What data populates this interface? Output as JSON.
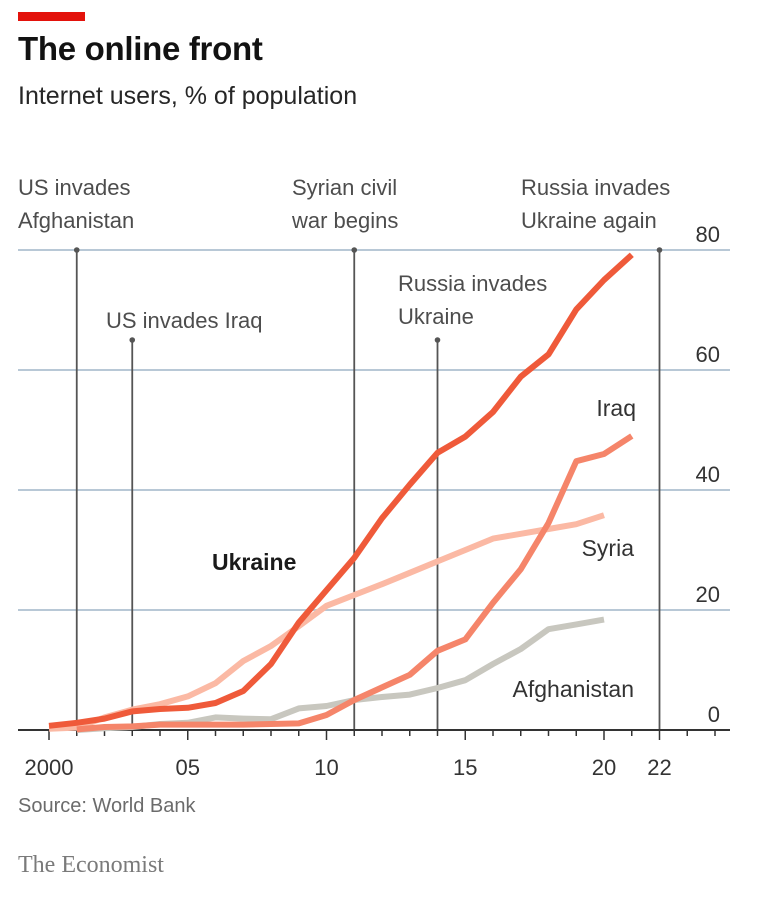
{
  "header": {
    "title": "The online front",
    "subtitle": "Internet users, % of population"
  },
  "footer": {
    "source": "Source: World Bank",
    "brand": "The Economist"
  },
  "colors": {
    "accent": "#e3120b",
    "ukraine": "#ef5a3a",
    "iraq": "#f5856a",
    "syria": "#fbb9a4",
    "afghanistan": "#c8c7bf",
    "grid": "#b8c8d6",
    "event_line": "#555555"
  },
  "chart_data": {
    "type": "line",
    "title": "The online front",
    "subtitle": "Internet users, % of population",
    "xlabel": "",
    "ylabel": "",
    "xlim": [
      2000,
      2024.5
    ],
    "ylim": [
      0,
      80
    ],
    "y_axis_position": "right",
    "grid": true,
    "x_ticks": [
      {
        "value": 2000,
        "label": "2000"
      },
      {
        "value": 2005,
        "label": "05"
      },
      {
        "value": 2010,
        "label": "10"
      },
      {
        "value": 2015,
        "label": "15"
      },
      {
        "value": 2020,
        "label": "20"
      },
      {
        "value": 2022,
        "label": "22"
      }
    ],
    "y_ticks": [
      {
        "value": 0,
        "label": "0"
      },
      {
        "value": 20,
        "label": "20"
      },
      {
        "value": 40,
        "label": "40"
      },
      {
        "value": 60,
        "label": "60"
      },
      {
        "value": 80,
        "label": "80"
      }
    ],
    "series": [
      {
        "name": "Syria",
        "key": "syria",
        "label_bold": false,
        "x": [
          2000,
          2001,
          2002,
          2003,
          2004,
          2005,
          2006,
          2007,
          2008,
          2009,
          2010,
          2011,
          2012,
          2013,
          2014,
          2015,
          2016,
          2017,
          2018,
          2019,
          2020
        ],
        "values": [
          0.2,
          0.4,
          2.1,
          3.4,
          4.3,
          5.6,
          7.8,
          11.5,
          14.0,
          17.3,
          20.7,
          22.5,
          24.3,
          26.2,
          28.1,
          30.0,
          31.9,
          32.7,
          33.5,
          34.3,
          35.8
        ]
      },
      {
        "name": "Afghanistan",
        "key": "afghanistan",
        "label_bold": false,
        "x": [
          2001,
          2002,
          2003,
          2004,
          2005,
          2006,
          2007,
          2008,
          2009,
          2010,
          2011,
          2012,
          2013,
          2014,
          2015,
          2016,
          2017,
          2018,
          2019,
          2020
        ],
        "values": [
          0.0,
          0.3,
          0.5,
          1.0,
          1.2,
          2.1,
          1.9,
          1.8,
          3.6,
          4.0,
          5.0,
          5.5,
          5.9,
          7.0,
          8.3,
          11.0,
          13.5,
          16.8,
          17.6,
          18.4
        ]
      },
      {
        "name": "Iraq",
        "key": "iraq",
        "label_bold": false,
        "x": [
          2001,
          2002,
          2003,
          2004,
          2005,
          2006,
          2007,
          2008,
          2009,
          2010,
          2011,
          2012,
          2013,
          2014,
          2015,
          2016,
          2017,
          2018,
          2019,
          2020,
          2021
        ],
        "values": [
          0.1,
          0.5,
          0.6,
          0.9,
          0.9,
          0.9,
          0.9,
          1.0,
          1.1,
          2.5,
          5.0,
          7.1,
          9.2,
          13.2,
          15.1,
          21.2,
          26.8,
          34.5,
          44.8,
          46.0,
          49.0
        ]
      },
      {
        "name": "Ukraine",
        "key": "ukraine",
        "label_bold": true,
        "x": [
          2000,
          2001,
          2002,
          2003,
          2004,
          2005,
          2006,
          2007,
          2008,
          2009,
          2010,
          2011,
          2012,
          2013,
          2014,
          2015,
          2016,
          2017,
          2018,
          2019,
          2020,
          2021
        ],
        "values": [
          0.7,
          1.2,
          1.9,
          3.1,
          3.5,
          3.7,
          4.5,
          6.5,
          11.0,
          17.9,
          23.3,
          28.7,
          35.3,
          40.9,
          46.2,
          48.9,
          53.0,
          58.9,
          62.6,
          70.1,
          75.0,
          79.2
        ]
      }
    ],
    "annotations": [
      {
        "year": 2001,
        "text": [
          "US invades",
          "Afghanistan"
        ],
        "top_value": 80,
        "label_level": "top"
      },
      {
        "year": 2003,
        "text": [
          "US invades Iraq"
        ],
        "top_value": 65,
        "label_level": "mid"
      },
      {
        "year": 2011,
        "text": [
          "Syrian civil",
          "war begins"
        ],
        "top_value": 80,
        "label_level": "top"
      },
      {
        "year": 2014,
        "text": [
          "Russia invades",
          "Ukraine"
        ],
        "top_value": 65,
        "label_level": "mid"
      },
      {
        "year": 2022,
        "text": [
          "Russia invades",
          "Ukraine again"
        ],
        "top_value": 80,
        "label_level": "top"
      }
    ]
  }
}
